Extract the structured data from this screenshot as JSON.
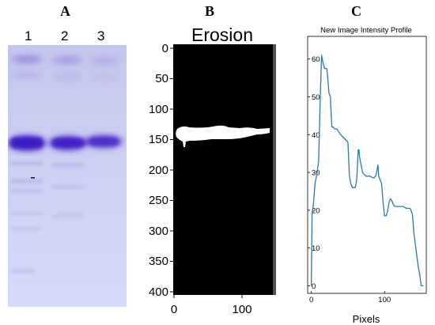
{
  "panels": {
    "a": {
      "letter": "A",
      "lanes": [
        "1",
        "2",
        "3"
      ]
    },
    "b": {
      "letter": "B",
      "title": "Erosion",
      "y_ticks": [
        "0",
        "50",
        "100",
        "150",
        "200",
        "250",
        "300",
        "350",
        "400"
      ],
      "x_ticks": [
        "0",
        "100"
      ]
    },
    "c": {
      "letter": "C"
    }
  },
  "chart_data": {
    "type": "line",
    "title": "New Image Intensity Profile",
    "xlabel": "Pixels",
    "ylabel": "",
    "xlim": [
      -5,
      157
    ],
    "ylim": [
      -2,
      66
    ],
    "x_ticks": [
      0,
      100
    ],
    "y_ticks": [
      0,
      10,
      20,
      30,
      40,
      50,
      60
    ],
    "line_color": "#2a7ab0",
    "grid": false,
    "x": [
      0,
      1,
      3,
      5,
      8,
      10,
      12,
      14,
      16,
      18,
      20,
      21,
      22,
      24,
      26,
      28,
      30,
      32,
      35,
      40,
      45,
      50,
      52,
      54,
      56,
      58,
      60,
      62,
      64,
      65,
      66,
      68,
      70,
      72,
      75,
      80,
      85,
      88,
      90,
      91,
      92,
      94,
      96,
      98,
      100,
      102,
      104,
      106,
      108,
      110,
      112,
      114,
      116,
      118,
      120,
      125,
      130,
      135,
      138,
      140,
      142,
      144,
      146,
      148,
      150,
      151,
      152,
      153
    ],
    "y": [
      0,
      19,
      22,
      27,
      30,
      33,
      48,
      61,
      59,
      57.5,
      57.5,
      57.5,
      56,
      51,
      50,
      42,
      42,
      41.5,
      41.5,
      40,
      39,
      38,
      29,
      27,
      26,
      26,
      26,
      28,
      36,
      36,
      34,
      32,
      30,
      29.5,
      29,
      29,
      28.5,
      29,
      31,
      32,
      29,
      28,
      27,
      22,
      18.5,
      18.5,
      19.5,
      22,
      23,
      22.5,
      21.5,
      21,
      21,
      21,
      21,
      21,
      20.5,
      20.5,
      19,
      14,
      11,
      8,
      5,
      3,
      0,
      0,
      0,
      0
    ]
  }
}
